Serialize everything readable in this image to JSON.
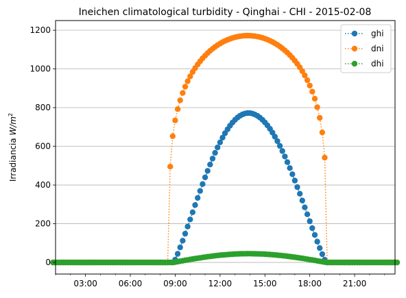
{
  "chart_data": {
    "type": "line",
    "title": "Ineichen climatological turbidity - Qinghai - CHI - 2015-02-08",
    "xlabel": "",
    "ylabel_prefix": "Irradiancia ",
    "ylabel_unit": "W/m",
    "ylabel_exp": "2",
    "x_unit": "hour of day",
    "xlim": [
      1.0,
      23.7
    ],
    "ylim": [
      -60,
      1250
    ],
    "x_ticks": [
      {
        "value": 3,
        "label": "03:00"
      },
      {
        "value": 6,
        "label": "06:00"
      },
      {
        "value": 9,
        "label": "09:00"
      },
      {
        "value": 12,
        "label": "12:00"
      },
      {
        "value": 15,
        "label": "15:00"
      },
      {
        "value": 18,
        "label": "18:00"
      },
      {
        "value": 21,
        "label": "21:00"
      }
    ],
    "y_ticks": [
      0,
      200,
      400,
      600,
      800,
      1000,
      1200
    ],
    "grid": "horizontal",
    "legend_position": "top-right",
    "sample_interval_min": 10,
    "series": [
      {
        "name": "ghi",
        "color": "#1f77b4",
        "marker": "circle",
        "linestyle": "dotted",
        "sunrise": 8.9,
        "sunset": 19.1,
        "peak_time": 13.9,
        "peak_value": 772,
        "profile_exponent": 1.15
      },
      {
        "name": "dni",
        "color": "#ff7f0e",
        "marker": "circle",
        "linestyle": "dotted",
        "sunrise": 8.6,
        "sunset": 19.1,
        "peak_time": 13.85,
        "peak_value": 1172,
        "profile_exponent": 0.22
      },
      {
        "name": "dhi",
        "color": "#2ca02c",
        "marker": "circle",
        "linestyle": "dotted",
        "sunrise": 8.9,
        "sunset": 19.1,
        "peak_time": 13.9,
        "peak_value": 45,
        "profile_exponent": 1.0
      }
    ]
  }
}
